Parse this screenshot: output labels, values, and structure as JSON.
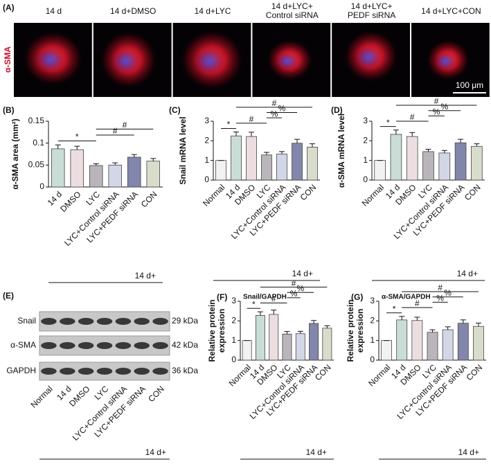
{
  "panel_a": {
    "label": "(A)",
    "stain": "α-SMA",
    "scale_bar": "100 μm",
    "columns": [
      [
        "14 d"
      ],
      [
        "14 d+DMSO"
      ],
      [
        "14 d+LYC"
      ],
      [
        "14 d+LYC+",
        "Control siRNA"
      ],
      [
        "14 d+LYC+",
        "PEDF siRNA"
      ],
      [
        "14 d+LYC+CON"
      ]
    ]
  },
  "panel_e": {
    "label": "(E)",
    "rows": [
      {
        "name": "Snail",
        "size": "29 kDa"
      },
      {
        "name": "α-SMA",
        "size": "42 kDa"
      },
      {
        "name": "GAPDH",
        "size": "36 kDa"
      }
    ],
    "lanes": [
      "Normal",
      "14 d",
      "DMSO",
      "LYC",
      "LYC+Control siRNA",
      "LYC+PEDF siRNA",
      "CON"
    ],
    "group_label": "14 d+"
  },
  "chart_data": [
    {
      "type": "bar",
      "label": "(B)",
      "ylabel": [
        "α-SMA area (mm²)"
      ],
      "categories": [
        "14 d",
        "DMSO",
        "LYC",
        "LYC+Control siRNA",
        "LYC+PEDF siRNA",
        "CON"
      ],
      "values": [
        0.087,
        0.085,
        0.049,
        0.05,
        0.068,
        0.059
      ],
      "errors": [
        0.009,
        0.008,
        0.004,
        0.005,
        0.006,
        0.006
      ],
      "colors": [
        "#c9ddd6",
        "#ecdde0",
        "#b9b5bb",
        "#d3d6e6",
        "#8286aa",
        "#d8dccb"
      ],
      "ylim": [
        0,
        0.15
      ],
      "yticks": [
        0,
        0.05,
        0.1,
        0.15
      ],
      "annotations": [
        {
          "text": "*",
          "between": [
            0,
            2
          ]
        },
        {
          "text": "#",
          "between": [
            2,
            4
          ]
        },
        {
          "text": "#",
          "between": [
            2,
            5
          ]
        }
      ],
      "group_label": "14 d+"
    },
    {
      "type": "bar",
      "label": "(C)",
      "ylabel": [
        "Snail mRNA level"
      ],
      "categories": [
        "Normal",
        "14 d",
        "DMSO",
        "LYC",
        "LYC+Control siRNA",
        "LYC+PEDF siRNA",
        "CON"
      ],
      "values": [
        1,
        2.25,
        2.22,
        1.28,
        1.33,
        1.88,
        1.68
      ],
      "errors": [
        0,
        0.2,
        0.22,
        0.13,
        0.12,
        0.2,
        0.17
      ],
      "colors": [
        "#f2f2f2",
        "#c9ddd6",
        "#ecdde0",
        "#b9b5bb",
        "#d3d6e6",
        "#8286aa",
        "#d8dccb"
      ],
      "ylim": [
        0,
        3
      ],
      "yticks": [
        0,
        1,
        2,
        3
      ],
      "annotations": [
        {
          "text": "*",
          "between": [
            0,
            1
          ]
        },
        {
          "text": "#",
          "between": [
            1,
            3
          ]
        },
        {
          "text": "%",
          "between": [
            3,
            4
          ]
        },
        {
          "text": "%",
          "between": [
            3,
            5
          ]
        },
        {
          "text": "#",
          "between": [
            1,
            6
          ]
        }
      ],
      "group_label": "14 d+"
    },
    {
      "type": "bar",
      "label": "(D)",
      "ylabel": [
        "α-SMA mRNA level"
      ],
      "categories": [
        "Normal",
        "14 d",
        "DMSO",
        "LYC",
        "LYC+Control siRNA",
        "LYC+PEDF siRNA",
        "CON"
      ],
      "values": [
        1,
        2.33,
        2.22,
        1.45,
        1.38,
        1.9,
        1.72
      ],
      "errors": [
        0,
        0.22,
        0.2,
        0.12,
        0.13,
        0.18,
        0.13
      ],
      "colors": [
        "#f2f2f2",
        "#c9ddd6",
        "#ecdde0",
        "#b9b5bb",
        "#d3d6e6",
        "#8286aa",
        "#d8dccb"
      ],
      "ylim": [
        0,
        3
      ],
      "yticks": [
        0,
        1,
        2,
        3
      ],
      "annotations": [
        {
          "text": "*",
          "between": [
            0,
            1
          ]
        },
        {
          "text": "#",
          "between": [
            1,
            3
          ]
        },
        {
          "text": "%",
          "between": [
            3,
            4
          ]
        },
        {
          "text": "%",
          "between": [
            3,
            5
          ]
        },
        {
          "text": "#",
          "between": [
            1,
            6
          ]
        }
      ],
      "group_label": "14 d+"
    },
    {
      "type": "bar",
      "label": "(F)",
      "title": "Snail/GAPDH",
      "ylabel": [
        "Relative protein",
        "expression"
      ],
      "categories": [
        "Normal",
        "14 d",
        "DMSO",
        "LYC",
        "LYC+Control siRNA",
        "LYC+PEDF siRNA",
        "CON"
      ],
      "values": [
        1,
        2.28,
        2.33,
        1.33,
        1.35,
        1.87,
        1.63
      ],
      "errors": [
        0,
        0.18,
        0.22,
        0.13,
        0.12,
        0.15,
        0.12
      ],
      "colors": [
        "#f2f2f2",
        "#c9ddd6",
        "#ecdde0",
        "#b9b5bb",
        "#d3d6e6",
        "#8286aa",
        "#d8dccb"
      ],
      "ylim": [
        0,
        3
      ],
      "yticks": [
        0,
        1,
        2,
        3
      ],
      "annotations": [
        {
          "text": "*",
          "between": [
            0,
            1
          ]
        },
        {
          "text": "#",
          "between": [
            1,
            3
          ]
        },
        {
          "text": "%",
          "between": [
            3,
            4
          ]
        },
        {
          "text": "%",
          "between": [
            3,
            5
          ]
        },
        {
          "text": "#",
          "between": [
            1,
            6
          ]
        }
      ],
      "group_label": "14 d+"
    },
    {
      "type": "bar",
      "label": "(G)",
      "title": "α-SMA/GAPDH",
      "ylabel": [
        "Relative protein",
        "expression"
      ],
      "categories": [
        "Normal",
        "14 d",
        "DMSO",
        "LYC",
        "LYC+Control siRNA",
        "LYC+PEDF siRNA",
        "CON"
      ],
      "values": [
        1,
        2.05,
        2.02,
        1.42,
        1.55,
        1.88,
        1.72
      ],
      "errors": [
        0,
        0.18,
        0.17,
        0.13,
        0.15,
        0.17,
        0.17
      ],
      "colors": [
        "#f2f2f2",
        "#c9ddd6",
        "#ecdde0",
        "#b9b5bb",
        "#d3d6e6",
        "#8286aa",
        "#d8dccb"
      ],
      "ylim": [
        0,
        3
      ],
      "yticks": [
        0,
        1,
        2,
        3
      ],
      "annotations": [
        {
          "text": "*",
          "between": [
            0,
            1
          ]
        },
        {
          "text": "#",
          "between": [
            1,
            3
          ]
        },
        {
          "text": "%",
          "between": [
            3,
            4
          ]
        },
        {
          "text": "%",
          "between": [
            3,
            5
          ]
        },
        {
          "text": "#",
          "between": [
            1,
            6
          ]
        }
      ],
      "group_label": "14 d+"
    }
  ]
}
